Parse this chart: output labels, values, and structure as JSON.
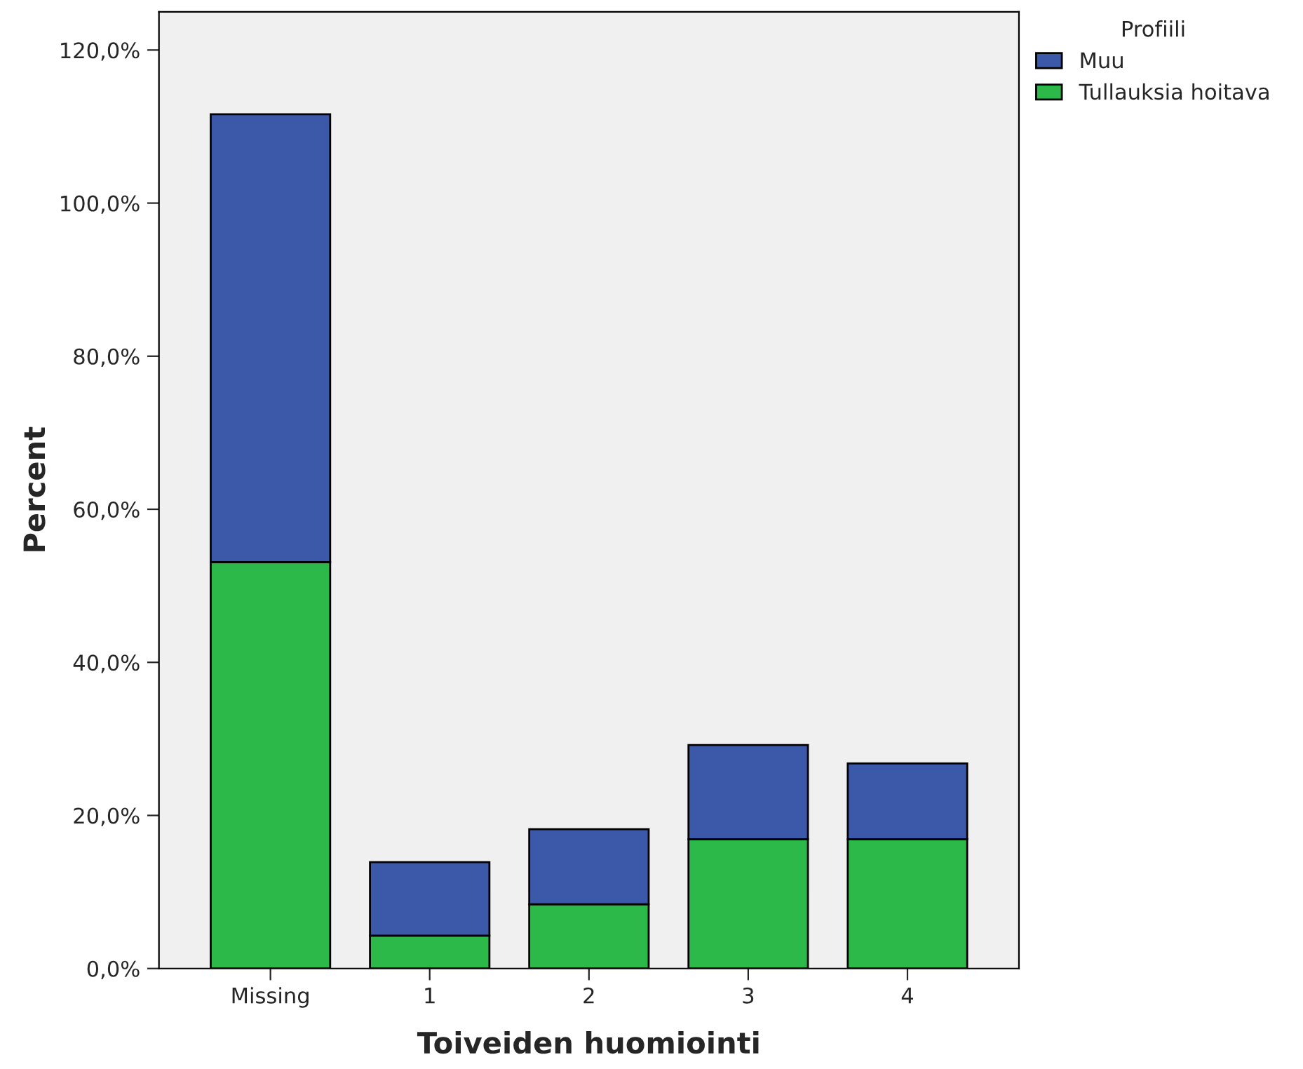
{
  "chart_data": {
    "type": "bar",
    "stacked": true,
    "xlabel": "Toiveiden huomiointi",
    "ylabel": "Percent",
    "legend_title": "Profiili",
    "legend": "top right",
    "grid": false,
    "categories": [
      "Missing",
      "1",
      "2",
      "3",
      "4"
    ],
    "series": [
      {
        "name": "Tullauksia hoitava",
        "color": "#2db84a",
        "values": [
          53.1,
          4.3,
          8.4,
          16.9,
          16.9
        ]
      },
      {
        "name": "Muu",
        "color": "#3c58a8",
        "values": [
          58.5,
          9.6,
          9.8,
          12.3,
          9.9
        ]
      }
    ],
    "ylim": [
      0,
      125
    ],
    "yticks": [
      {
        "value": 0,
        "label": "0,0%"
      },
      {
        "value": 20,
        "label": "20,0%"
      },
      {
        "value": 40,
        "label": "40,0%"
      },
      {
        "value": 60,
        "label": "60,0%"
      },
      {
        "value": 80,
        "label": "80,0%"
      },
      {
        "value": 100,
        "label": "100,0%"
      },
      {
        "value": 120,
        "label": "120,0%"
      }
    ]
  }
}
